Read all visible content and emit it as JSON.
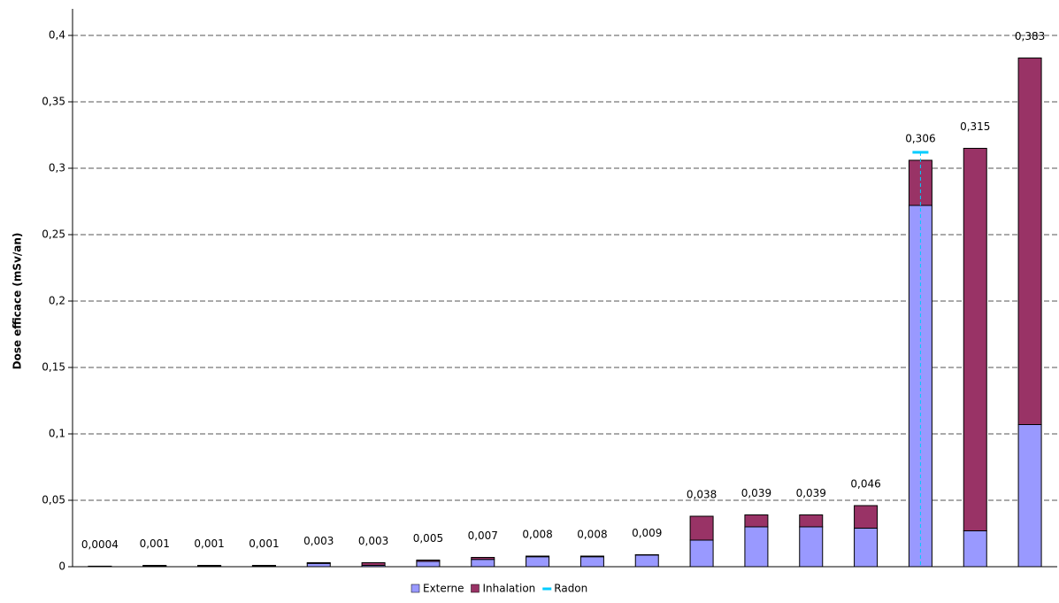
{
  "chart_data": {
    "type": "stacked_bar",
    "y_label": "Dose efficace (mSv/an)",
    "categories": [
      null,
      null,
      null,
      null,
      null,
      null,
      null,
      null,
      null,
      null,
      null,
      null,
      null,
      null,
      null,
      null,
      null,
      null
    ],
    "series": [
      {
        "name": "Externe",
        "color": "#9999ff",
        "values": [
          0.0002,
          0.0005,
          0.0005,
          0.0005,
          0.0025,
          0.001,
          0.004,
          0.0055,
          0.0075,
          0.0075,
          0.0088,
          0.02,
          0.03,
          0.03,
          0.029,
          0.272,
          0.027,
          0.107
        ]
      },
      {
        "name": "Inhalation",
        "color": "#993366",
        "values": [
          0.0002,
          0.0005,
          0.0005,
          0.0005,
          0.0005,
          0.002,
          0.001,
          0.0015,
          0.0005,
          0.0005,
          0.0002,
          0.018,
          0.009,
          0.009,
          0.017,
          0.034,
          0.288,
          0.276
        ]
      },
      {
        "name": "Radon",
        "color": "#00ccff",
        "kind": "marker",
        "values": [
          null,
          null,
          null,
          null,
          null,
          null,
          null,
          null,
          null,
          null,
          null,
          null,
          null,
          null,
          null,
          0.312,
          null,
          null
        ]
      }
    ],
    "totals": {
      "values": [
        0.0004,
        0.001,
        0.001,
        0.001,
        0.003,
        0.003,
        0.005,
        0.007,
        0.008,
        0.008,
        0.009,
        0.038,
        0.039,
        0.039,
        0.046,
        0.306,
        0.315,
        0.383
      ],
      "value_labels": [
        "0,0004",
        "0,001",
        "0,001",
        "0,001",
        "0,003",
        "0,003",
        "0,005",
        "0,007",
        "0,008",
        "0,008",
        "0,009",
        "0,038",
        "0,039",
        "0,039",
        "0,046",
        "0,306",
        "0,315",
        "0,383"
      ]
    },
    "ylim": [
      0,
      0.42
    ],
    "yticks": [
      0,
      {
        "value": 0.05,
        "label": "0,05"
      },
      {
        "value": 0.1,
        "label": "0,1"
      },
      {
        "value": 0.15,
        "label": "0,15"
      },
      {
        "value": 0.2,
        "label": "0,2"
      },
      {
        "value": 0.25,
        "label": "0,25"
      },
      {
        "value": 0.3,
        "label": "0,3"
      },
      {
        "value": 0.35,
        "label": "0,35"
      },
      {
        "value": 0.4,
        "label": "0,4"
      }
    ],
    "grid": true,
    "legend": "bottom"
  }
}
